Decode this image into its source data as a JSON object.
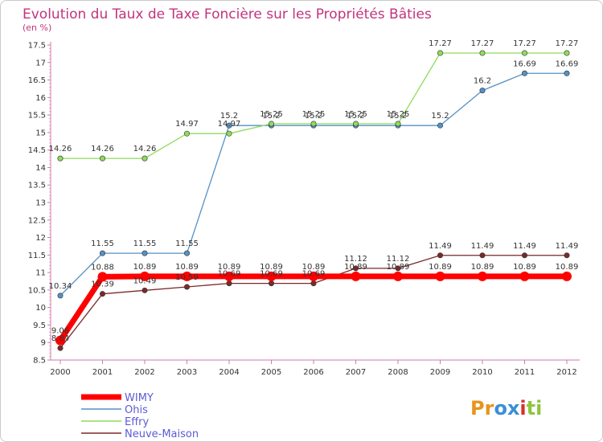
{
  "chart_data": {
    "type": "line",
    "title": "Evolution du Taux de Taxe Foncière sur les Propriétés Bâties",
    "ylabel": "(en %)",
    "xlabel": "",
    "ylim": [
      8.5,
      17.5
    ],
    "ytick_step": 0.5,
    "grid": false,
    "legend_position": "bottom-left",
    "categories": [
      "2000",
      "2001",
      "2002",
      "2003",
      "2004",
      "2005",
      "2006",
      "2007",
      "2008",
      "2009",
      "2010",
      "2011",
      "2012"
    ],
    "series": [
      {
        "name": "WIMY",
        "color": "#ff0000",
        "values": [
          9.06,
          10.88,
          10.89,
          10.89,
          10.89,
          10.89,
          10.89,
          10.89,
          10.89,
          10.89,
          10.89,
          10.89,
          10.89
        ]
      },
      {
        "name": "Ohis",
        "color": "#5591c5",
        "values": [
          10.34,
          11.55,
          11.55,
          11.55,
          15.2,
          15.2,
          15.2,
          15.2,
          15.2,
          15.2,
          16.2,
          16.69,
          16.69
        ]
      },
      {
        "name": "Effry",
        "color": "#8fdc5c",
        "values": [
          14.26,
          14.26,
          14.26,
          14.97,
          14.97,
          15.25,
          15.25,
          15.25,
          15.25,
          17.27,
          17.27,
          17.27,
          17.27
        ]
      },
      {
        "name": "Neuve-Maison",
        "color": "#7a2a2a",
        "values": [
          8.84,
          10.39,
          10.49,
          10.59,
          10.69,
          10.69,
          10.69,
          11.12,
          11.12,
          11.49,
          11.49,
          11.49,
          11.49
        ]
      }
    ]
  },
  "branding": {
    "logo_text": "Proxiti",
    "logo_letter_colors": [
      "#e8941e",
      "#e8941e",
      "#3a8fd6",
      "#3a8fd6",
      "#d8312e",
      "#8dc63f",
      "#8dc63f"
    ]
  }
}
